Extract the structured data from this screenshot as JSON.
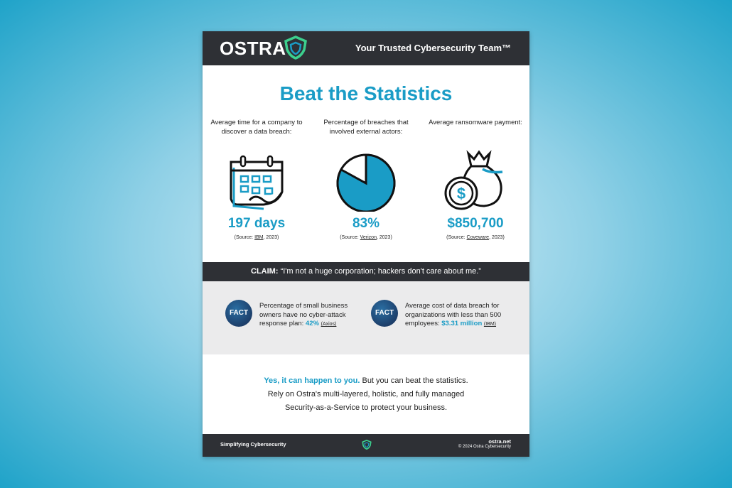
{
  "header": {
    "brand": "OSTRA",
    "tagline": "Your Trusted Cybersecurity Team™"
  },
  "title": "Beat the Statistics",
  "stats": [
    {
      "label": "Average time for a company to discover a data breach:",
      "value": "197 days",
      "source_prefix": "(Source: ",
      "source_name": "IBM",
      "source_suffix": ", 2023)",
      "icon": "calendar-icon"
    },
    {
      "label": "Percentage of breaches that involved external actors:",
      "value": "83%",
      "pie_fraction": 0.83,
      "source_prefix": "(Source: ",
      "source_name": "Verizon",
      "source_suffix": ", 2023)",
      "icon": "pie-chart-icon"
    },
    {
      "label": "Average ransomware payment:",
      "value": "$850,700",
      "source_prefix": "(Source: ",
      "source_name": "Coveware",
      "source_suffix": ", 2023)",
      "icon": "money-bag-icon"
    }
  ],
  "claim": {
    "label": "CLAIM:",
    "text": "“I'm not a huge corporation; hackers don't care about me.”"
  },
  "facts": [
    {
      "badge": "FACT",
      "text": "Percentage of small business owners have no cyber-attack response plan:",
      "value": "42%",
      "source": "(Axios)"
    },
    {
      "badge": "FACT",
      "text": "Average cost of data breach for organizations with less than 500 employees:",
      "value": "$3.31 million",
      "source": "(IBM)"
    }
  ],
  "closing": {
    "highlight": "Yes, it can happen to you.",
    "line1_rest": " But you can beat the statistics.",
    "line2": "Rely on Ostra's multi-layered, holistic, and fully managed",
    "line3": "Security-as-a-Service to protect your business."
  },
  "footer": {
    "left": "Simplifying Cybersecurity",
    "url": "ostra.net",
    "copyright": "© 2024 Ostra Cybersecurity"
  },
  "colors": {
    "accent": "#1a9cc6",
    "dark": "#2e3035",
    "logo_green": "#3ccf8e"
  }
}
